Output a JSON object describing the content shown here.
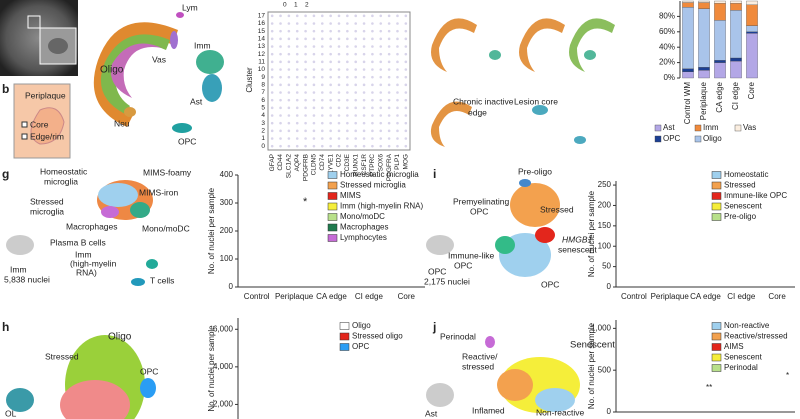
{
  "figure": {
    "panel_labels": {
      "b": "b",
      "g": "g",
      "i": "i",
      "h": "h",
      "j": "j"
    },
    "panel_b": [
      "Periplaque",
      "Core",
      "Edge/rim"
    ],
    "umap_main": [
      "Lym",
      "Vas",
      "Imm",
      "Oligo",
      "Neu",
      "Ast",
      "OPC"
    ],
    "dotplot": {
      "y_label": "Cluster",
      "size_legend": [
        "0",
        "1",
        "2"
      ],
      "genes": [
        "GFAP",
        "CD44",
        "SLC1A2",
        "AQP4",
        "PDGFRB",
        "CLDN5",
        "CD74",
        "LYVE1",
        "CD2",
        "CD3E",
        "RUNX1",
        "CSF1R",
        "PTPRC",
        "SOX6",
        "PDGFRA",
        "PLP1",
        "MOG"
      ],
      "clusters": [
        "0",
        "1",
        "2",
        "3",
        "4",
        "5",
        "6",
        "7",
        "8",
        "9",
        "10",
        "11",
        "12",
        "13",
        "14",
        "15",
        "16",
        "17"
      ]
    },
    "lesion_umaps": {
      "chronic": [
        "Chronic inactive",
        "edge"
      ],
      "core": "Lesion core"
    },
    "panel_g": {
      "homeostatic": [
        "Homeostatic",
        "microglia"
      ],
      "foamy": "MIMS-foamy",
      "iron": "MIMS-iron",
      "stressed": [
        "Stressed",
        "microglia"
      ],
      "macro": "Macrophages",
      "mono": "Mono/moDC",
      "plasma": "Plasma B cells",
      "highmyelin": [
        "Imm",
        "(high-myelin",
        "RNA)"
      ],
      "tcells": "T cells",
      "source": [
        "Imm",
        "5,838 nuclei"
      ],
      "star": "*"
    },
    "panel_i": {
      "preoligo": "Pre-oligo",
      "premyel": [
        "Premyelinating",
        "OPC"
      ],
      "stressed": "Stressed",
      "hmgb1": "HMGB1",
      "senescent": "senescent",
      "immune": [
        "Immune-like",
        "OPC"
      ],
      "opc": "OPC",
      "source": [
        "OPC",
        "2,175 nuclei"
      ]
    },
    "panel_h": {
      "oligo": "Oligo",
      "stressed": "Stressed",
      "opc": "OPC",
      "source": "OL"
    },
    "panel_j": {
      "perinodal": "Perinodal",
      "senescent": "Senescent",
      "reactive": [
        "Reactive/",
        "stressed"
      ],
      "inflamed": "Inflamed",
      "nonreactive": "Non-reactive",
      "source": "Ast",
      "stars2": "**",
      "star": "*"
    }
  },
  "chart_data": [
    {
      "type": "stacked_bar",
      "categories": [
        "Control WM",
        "Periplaque",
        "CA edge",
        "CI edge",
        "Core"
      ],
      "ylim": [
        0,
        100
      ],
      "yticks": [
        {
          "value": 0,
          "label": "0%"
        },
        {
          "value": 20,
          "label": "20%"
        },
        {
          "value": 40,
          "label": "40%"
        },
        {
          "value": 60,
          "label": "60%"
        },
        {
          "value": 80,
          "label": "80%"
        }
      ],
      "series": [
        {
          "name": "Ast",
          "color": "#b3a7e6",
          "values": [
            8,
            10,
            20,
            22,
            58
          ]
        },
        {
          "name": "OPC",
          "color": "#1c3f94",
          "values": [
            4,
            4,
            3,
            4,
            2
          ]
        },
        {
          "name": "Oligo",
          "color": "#a9c4ea",
          "values": [
            80,
            76,
            52,
            62,
            8
          ]
        },
        {
          "name": "Imm",
          "color": "#f08a3c",
          "values": [
            6,
            8,
            22,
            9,
            27
          ]
        },
        {
          "name": "Vas",
          "color": "#fbeee0",
          "values": [
            2,
            2,
            3,
            3,
            5
          ]
        }
      ]
    },
    {
      "type": "violin",
      "y_label": "No. of nuclei per sample",
      "categories": [
        "Control",
        "Periplaque",
        "CA edge",
        "CI edge",
        "Core"
      ],
      "ylim": [
        0,
        400
      ],
      "yticks": [
        0,
        100,
        200,
        300,
        400
      ],
      "series": [
        {
          "name": "Homeostatic microglia",
          "color": "#9fd0ee"
        },
        {
          "name": "Stressed microglia",
          "color": "#f3a14e"
        },
        {
          "name": "MIMS",
          "color": "#e3261c"
        },
        {
          "name": "Imm (high-myelin RNA)",
          "color": "#f5ee3a"
        },
        {
          "name": "Mono/moDC",
          "color": "#b8e08a"
        },
        {
          "name": "Macrophages",
          "color": "#1f7a4d"
        },
        {
          "name": "Lymphocytes",
          "color": "#c66bd6"
        }
      ]
    },
    {
      "type": "violin",
      "y_label": "No. of nuclei per sample",
      "categories": [
        "Control",
        "Periplaque",
        "CA edge",
        "CI edge",
        "Core"
      ],
      "ylim": [
        0,
        260
      ],
      "yticks": [
        0,
        50,
        100,
        150,
        200,
        250
      ],
      "series": [
        {
          "name": "Homeostatic",
          "color": "#9fd0ee"
        },
        {
          "name": "Stressed",
          "color": "#f3a14e"
        },
        {
          "name": "Immune-like OPC",
          "color": "#e3261c"
        },
        {
          "name": "Senescent",
          "color": "#f5ee3a"
        },
        {
          "name": "Pre-oligo",
          "color": "#b8e08a"
        }
      ]
    },
    {
      "type": "violin",
      "y_label": "No. of nuclei per sample",
      "categories": [],
      "ylim": [
        0,
        6600
      ],
      "yticks": [
        {
          "value": 2000,
          "label": "2,000"
        },
        {
          "value": 4000,
          "label": "4,000"
        },
        {
          "value": 6000,
          "label": "6,000"
        }
      ],
      "series": [
        {
          "name": "Oligo",
          "color": "#ffffff"
        },
        {
          "name": "Stressed oligo",
          "color": "#e3261c"
        },
        {
          "name": "OPC",
          "color": "#2a9df4"
        }
      ]
    },
    {
      "type": "violin",
      "y_label": "No. of nuclei per sample",
      "categories": [],
      "ylim": [
        0,
        1100
      ],
      "yticks": [
        0,
        500,
        {
          "value": 1000,
          "label": "1,000"
        }
      ],
      "series": [
        {
          "name": "Non-reactive",
          "color": "#9fd0ee"
        },
        {
          "name": "Reactive/stressed",
          "color": "#f3a14e"
        },
        {
          "name": "AIMS",
          "color": "#e3261c"
        },
        {
          "name": "Senescent",
          "color": "#f5ee3a"
        },
        {
          "name": "Perinodal",
          "color": "#b8e08a"
        }
      ]
    }
  ]
}
